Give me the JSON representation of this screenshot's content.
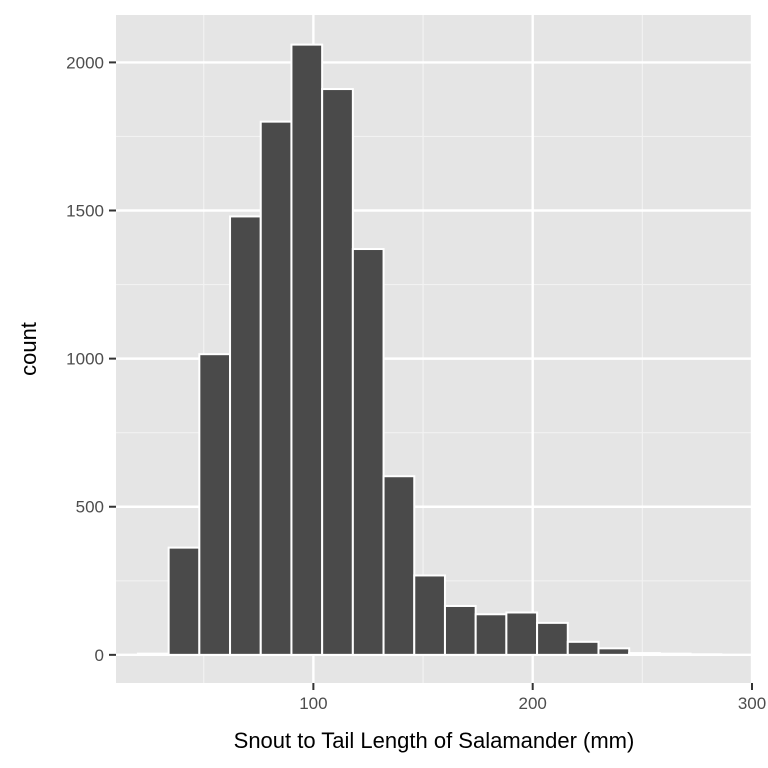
{
  "chart_data": {
    "type": "bar",
    "subtype": "histogram",
    "title": "",
    "xlabel": "Snout to Tail Length of Salamander (mm)",
    "ylabel": "count",
    "xlim": [
      10,
      300
    ],
    "ylim": [
      -95,
      2160
    ],
    "x_ticks": [
      100,
      200,
      300
    ],
    "y_ticks": [
      0,
      500,
      1000,
      1500,
      2000
    ],
    "grid": true,
    "legend": "none",
    "bin_width": 14,
    "bins": [
      {
        "x0": 20,
        "x1": 34,
        "count": 4
      },
      {
        "x0": 34,
        "x1": 48,
        "count": 362
      },
      {
        "x0": 48,
        "x1": 62,
        "count": 1015
      },
      {
        "x0": 62,
        "x1": 76,
        "count": 1480
      },
      {
        "x0": 76,
        "x1": 90,
        "count": 1800
      },
      {
        "x0": 90,
        "x1": 104,
        "count": 2060
      },
      {
        "x0": 104,
        "x1": 118,
        "count": 1910
      },
      {
        "x0": 118,
        "x1": 132,
        "count": 1370
      },
      {
        "x0": 132,
        "x1": 146,
        "count": 603
      },
      {
        "x0": 146,
        "x1": 160,
        "count": 268
      },
      {
        "x0": 160,
        "x1": 174,
        "count": 165
      },
      {
        "x0": 174,
        "x1": 188,
        "count": 137
      },
      {
        "x0": 188,
        "x1": 202,
        "count": 143
      },
      {
        "x0": 202,
        "x1": 216,
        "count": 108
      },
      {
        "x0": 216,
        "x1": 230,
        "count": 44
      },
      {
        "x0": 230,
        "x1": 244,
        "count": 22
      },
      {
        "x0": 244,
        "x1": 258,
        "count": 6
      },
      {
        "x0": 258,
        "x1": 272,
        "count": 4
      },
      {
        "x0": 272,
        "x1": 286,
        "count": 2
      }
    ],
    "colors": {
      "bar_fill": "#4a4a4a",
      "bar_stroke": "#ffffff",
      "panel_background": "#e5e5e5",
      "grid_major": "#ffffff",
      "grid_minor": "#f2f2f2"
    }
  }
}
